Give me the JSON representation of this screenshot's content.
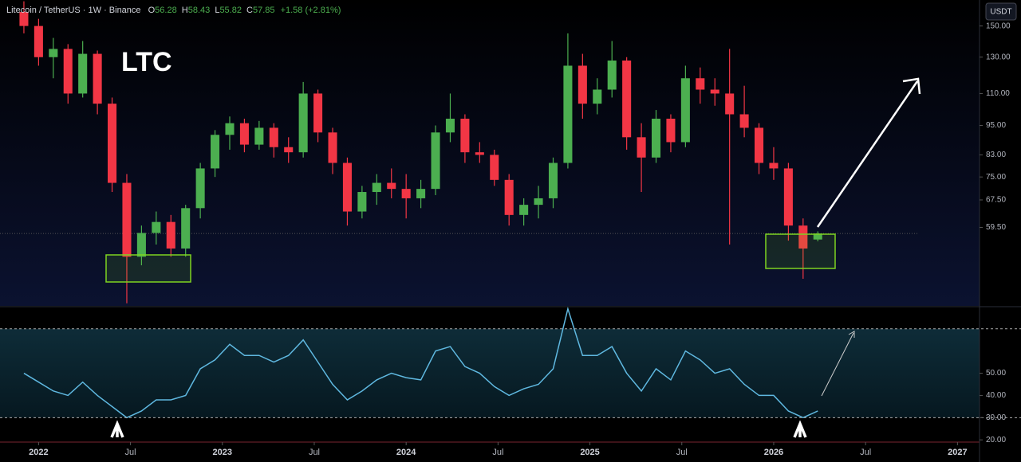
{
  "chart_data": {
    "type": "candlestick",
    "title": "LTC",
    "symbol": "Litecoin / TetherUS · 1W · Binance",
    "ohlc_labels": [
      "O",
      "H",
      "L",
      "C"
    ],
    "change": "+1.58 (+2.81%)",
    "currency": "USDT",
    "log_scale": true,
    "up_color": "#4caf50",
    "down_color": "#f23645",
    "x": [
      2021.92,
      2022.0,
      2022.08,
      2022.16,
      2022.24,
      2022.32,
      2022.4,
      2022.48,
      2022.56,
      2022.64,
      2022.72,
      2022.8,
      2022.88,
      2022.96,
      2023.04,
      2023.12,
      2023.2,
      2023.28,
      2023.36,
      2023.44,
      2023.52,
      2023.6,
      2023.68,
      2023.76,
      2023.84,
      2023.92,
      2024.0,
      2024.08,
      2024.16,
      2024.24,
      2024.32,
      2024.4,
      2024.48,
      2024.56,
      2024.64,
      2024.72,
      2024.8,
      2024.88,
      2024.96,
      2025.04,
      2025.12,
      2025.2,
      2025.28,
      2025.36,
      2025.44,
      2025.52,
      2025.6,
      2025.68,
      2025.76,
      2025.84,
      2025.92,
      2026.0,
      2026.08,
      2026.16,
      2026.24
    ],
    "open": [
      160,
      150,
      130,
      135,
      110,
      132,
      105,
      73,
      52,
      58,
      61,
      54,
      65,
      78,
      91,
      96,
      87,
      94,
      86,
      84,
      110,
      92,
      80,
      64,
      70,
      73,
      71,
      68,
      71,
      92,
      98,
      84,
      83,
      74,
      63,
      66,
      68,
      80,
      125,
      105,
      112,
      128,
      90,
      82,
      98,
      88,
      118,
      112,
      110,
      100,
      94,
      80,
      78,
      60,
      56.28
    ],
    "high": [
      168,
      155,
      142,
      138,
      140,
      134,
      108,
      76,
      60,
      64,
      63,
      66,
      80,
      93,
      99,
      98,
      97,
      96,
      90,
      116,
      112,
      94,
      82,
      72,
      76,
      78,
      76,
      74,
      95,
      110,
      100,
      88,
      85,
      76,
      68,
      72,
      82,
      145,
      132,
      118,
      140,
      130,
      96,
      102,
      100,
      125,
      124,
      118,
      135,
      114,
      96,
      86,
      80,
      62,
      58.43
    ],
    "low": [
      145,
      125,
      118,
      105,
      108,
      100,
      70,
      42,
      50,
      55,
      52,
      52,
      62,
      75,
      85,
      84,
      85,
      82,
      80,
      82,
      88,
      76,
      60,
      62,
      66,
      68,
      62,
      65,
      69,
      88,
      80,
      80,
      72,
      60,
      60,
      62,
      65,
      78,
      98,
      100,
      108,
      85,
      70,
      80,
      84,
      86,
      105,
      104,
      55,
      90,
      76,
      74,
      56,
      47,
      55.82
    ],
    "close": [
      150,
      130,
      135,
      110,
      132,
      105,
      73,
      52,
      58,
      61,
      54,
      65,
      78,
      91,
      96,
      87,
      94,
      86,
      84,
      110,
      92,
      80,
      64,
      70,
      73,
      71,
      68,
      71,
      92,
      98,
      84,
      83,
      74,
      63,
      66,
      68,
      80,
      125,
      105,
      112,
      128,
      90,
      82,
      98,
      88,
      118,
      112,
      110,
      100,
      94,
      80,
      78,
      60,
      54,
      57.85
    ],
    "xlim": [
      2021.79,
      2027.12
    ],
    "xticks": [
      2022,
      {
        "value": 2022.5,
        "label": "Jul"
      },
      2023,
      {
        "value": 2023.5,
        "label": "Jul"
      },
      2024,
      {
        "value": 2024.5,
        "label": "Jul"
      },
      2025,
      {
        "value": 2025.5,
        "label": "Jul"
      },
      2026,
      {
        "value": 2026.5,
        "label": "Jul"
      },
      2027
    ],
    "ylim": [
      41.5,
      169
    ],
    "yticks": [
      {
        "value": 150,
        "label": "150.00"
      },
      {
        "value": 130,
        "label": "130.00"
      },
      {
        "value": 110,
        "label": "110.00"
      },
      {
        "value": 95,
        "label": "95.00"
      },
      {
        "value": 83,
        "label": "83.00"
      },
      {
        "value": 75,
        "label": "75.00"
      },
      {
        "value": 67.5,
        "label": "67.50"
      },
      {
        "value": 59.5,
        "label": "59.50"
      }
    ],
    "rsi": {
      "type": "line",
      "color": "#5fb8e0",
      "values": [
        50,
        46,
        42,
        40,
        46,
        40,
        35,
        30,
        33,
        38,
        38,
        40,
        52,
        56,
        63,
        58,
        58,
        55,
        58,
        65,
        55,
        45,
        38,
        42,
        47,
        50,
        48,
        47,
        60,
        62,
        53,
        50,
        44,
        40,
        43,
        45,
        52,
        79,
        58,
        58,
        62,
        50,
        42,
        52,
        47,
        60,
        56,
        50,
        52,
        45,
        40,
        40,
        33,
        30,
        33
      ],
      "ylim": [
        19,
        79.6
      ],
      "yticks": [
        {
          "value": 50,
          "label": "50.00"
        },
        {
          "value": 40,
          "label": "40.00"
        },
        {
          "value": 30,
          "label": "30.00"
        },
        {
          "value": 20,
          "label": "20.00"
        }
      ],
      "levels": [
        70,
        30
      ]
    }
  }
}
